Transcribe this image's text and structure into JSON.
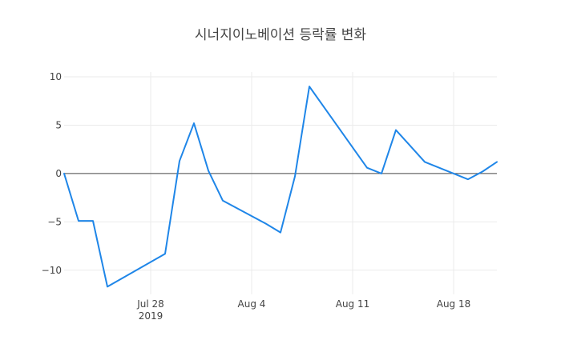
{
  "chart_data": {
    "type": "line",
    "title": "시너지이노베이션 등락률 변화",
    "xlabel": "",
    "ylabel": "",
    "xlim": [
      "2019-07-22",
      "2019-08-21"
    ],
    "ylim": [
      -12.5,
      10.5
    ],
    "grid": true,
    "legend": "none",
    "zero_line": true,
    "x_ticks": [
      {
        "date": "2019-07-28",
        "label": "Jul 28",
        "sublabel": "2019"
      },
      {
        "date": "2019-08-04",
        "label": "Aug 4",
        "sublabel": ""
      },
      {
        "date": "2019-08-11",
        "label": "Aug 11",
        "sublabel": ""
      },
      {
        "date": "2019-08-18",
        "label": "Aug 18",
        "sublabel": ""
      }
    ],
    "y_ticks": [
      {
        "value": 10,
        "label": "10"
      },
      {
        "value": 5,
        "label": "5"
      },
      {
        "value": 0,
        "label": "0"
      },
      {
        "value": -5,
        "label": "−5"
      },
      {
        "value": -10,
        "label": "−10"
      }
    ],
    "series": [
      {
        "color": "#1f86e8",
        "x": [
          "2019-07-22",
          "2019-07-23",
          "2019-07-24",
          "2019-07-25",
          "2019-07-29",
          "2019-07-30",
          "2019-07-31",
          "2019-08-01",
          "2019-08-02",
          "2019-08-05",
          "2019-08-06",
          "2019-08-07",
          "2019-08-08",
          "2019-08-12",
          "2019-08-13",
          "2019-08-14",
          "2019-08-16",
          "2019-08-19",
          "2019-08-20",
          "2019-08-21"
        ],
        "y": [
          0.0,
          -4.9,
          -4.9,
          -11.7,
          -8.3,
          1.3,
          5.2,
          0.3,
          -2.8,
          -5.2,
          -6.1,
          -0.3,
          9.0,
          0.6,
          0.0,
          4.5,
          1.2,
          -0.6,
          0.2,
          1.2
        ]
      }
    ]
  }
}
